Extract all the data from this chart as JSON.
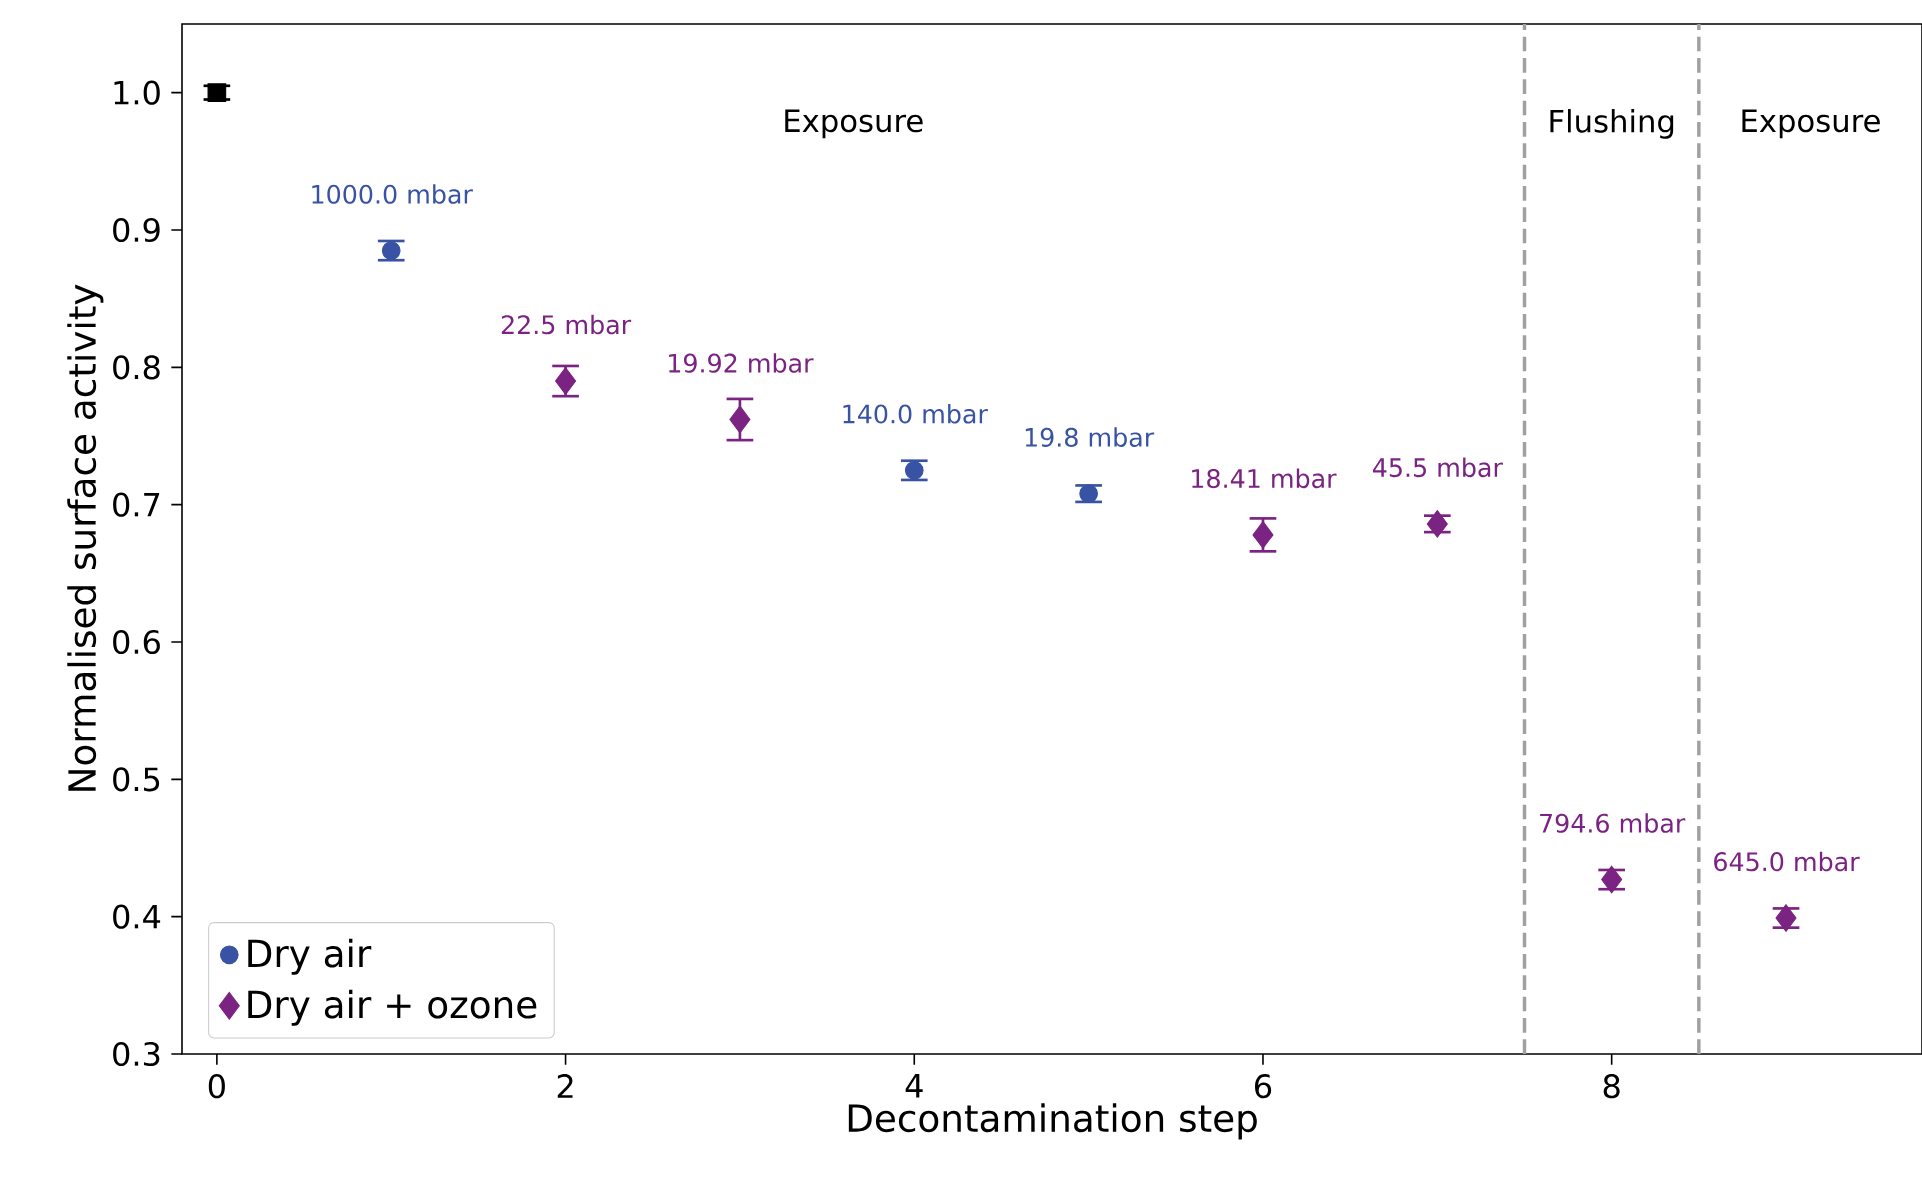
{
  "chart_data": {
    "type": "scatter",
    "xlabel": "Decontamination step",
    "ylabel": "Normalised surface activity",
    "xlim": [
      -0.2,
      9.78
    ],
    "ylim": [
      0.3,
      1.05
    ],
    "xticks": [
      0,
      2,
      4,
      6,
      8
    ],
    "yticks": [
      0.3,
      0.4,
      0.5,
      0.6,
      0.7,
      0.8,
      0.9,
      {
        "value": 1.0,
        "label": "1.0"
      }
    ],
    "legend": "bottom left",
    "series": [
      {
        "color": "#000000",
        "marker": "square",
        "x": [
          0
        ],
        "values": [
          1.0
        ],
        "errors": [
          0.005
        ]
      },
      {
        "name": "Dry air",
        "color": "#3953a4",
        "marker": "circle",
        "x": [
          1,
          4,
          5
        ],
        "values": [
          0.885,
          0.725,
          0.708
        ],
        "errors": [
          0.007,
          0.007,
          0.006
        ]
      },
      {
        "name": "Dry air + ozone",
        "color": "#7b2382",
        "marker": "diamond",
        "x": [
          2,
          3,
          6,
          7,
          8,
          9
        ],
        "values": [
          0.79,
          0.762,
          0.678,
          0.686,
          0.427,
          0.399
        ],
        "errors": [
          0.011,
          0.015,
          0.012,
          0.006,
          0.007,
          0.007
        ]
      }
    ],
    "ref_lines": [
      {
        "axis": "x",
        "value": 7.5,
        "color": "#a0a0a0",
        "line_style": "dashed"
      },
      {
        "axis": "x",
        "value": 8.5,
        "color": "#a0a0a0",
        "line_style": "dashed"
      }
    ],
    "annotations": [
      "Exposure",
      "Flushing",
      "Exposure",
      {
        "text": "1000.0 mbar",
        "x": 1,
        "y": 0.885
      },
      {
        "text": "22.5 mbar",
        "x": 2,
        "y": 0.79
      },
      {
        "text": "19.92 mbar",
        "x": 3,
        "y": 0.762
      },
      {
        "text": "140.0 mbar",
        "x": 4,
        "y": 0.725
      },
      {
        "text": "19.8 mbar",
        "x": 5,
        "y": 0.708
      },
      {
        "text": "18.41 mbar",
        "x": 6,
        "y": 0.678
      },
      {
        "text": "45.5 mbar",
        "x": 7,
        "y": 0.686
      },
      {
        "text": "794.6 mbar",
        "x": 8,
        "y": 0.427
      },
      {
        "text": "645.0 mbar",
        "x": 9,
        "y": 0.399
      }
    ]
  }
}
